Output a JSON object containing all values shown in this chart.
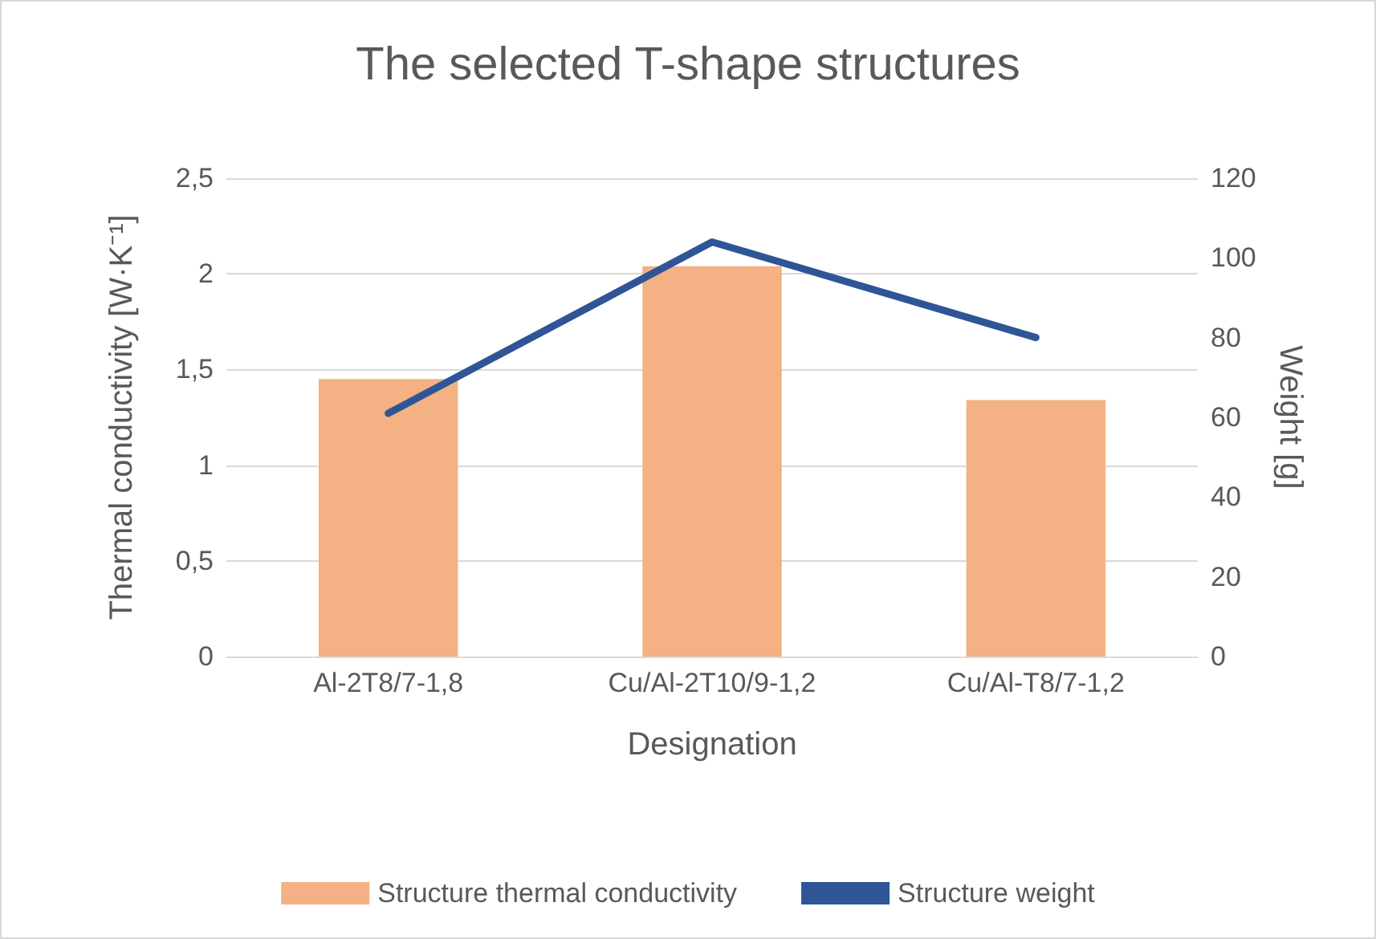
{
  "chart_data": {
    "type": "bar",
    "title": "The selected T-shape structures",
    "xlabel": "Designation",
    "ylabel": "Thermal conductivity [W·K⁻¹]",
    "y2label": "Weight [g]",
    "categories": [
      "Al-2T8/7-1,8",
      "Cu/Al-2T10/9-1,2",
      "Cu/Al-T8/7-1,2"
    ],
    "series": [
      {
        "name": "Structure thermal conductivity",
        "color": "#f4b183",
        "values": [
          1.45,
          2.04,
          1.34
        ]
      },
      {
        "name": "Structure weight",
        "type": "line",
        "axis": "y2",
        "color": "#2f5597",
        "values": [
          61,
          104,
          80
        ],
        "marker": "none"
      }
    ],
    "ylim": [
      0,
      2.5
    ],
    "yticks": [
      0,
      {
        "value": 0.5,
        "label": "0,5"
      },
      1,
      {
        "value": 1.5,
        "label": "1,5"
      },
      2,
      {
        "value": 2.5,
        "label": "2,5"
      }
    ],
    "y2lim": [
      0,
      120
    ],
    "y2ticks": [
      0,
      20,
      40,
      60,
      80,
      100,
      120
    ],
    "grid": "y",
    "legend": "bottom"
  }
}
